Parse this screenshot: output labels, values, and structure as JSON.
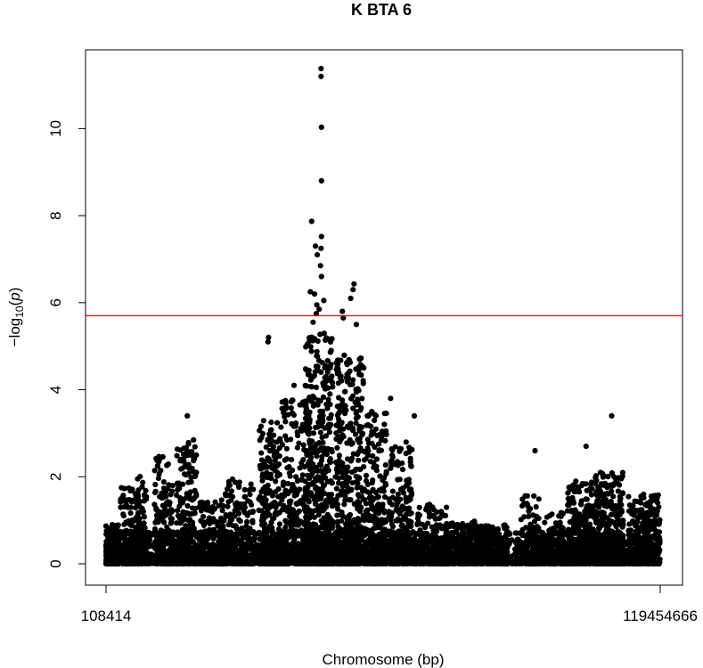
{
  "chart_data": {
    "type": "scatter",
    "title": "K BTA 6",
    "xlabel": "Chromosome (bp)",
    "ylabel_base": "−log",
    "ylabel_sub": "10",
    "ylabel_open": "(",
    "ylabel_var": "p",
    "ylabel_close": ")",
    "xlim": [
      108414,
      119454666
    ],
    "ylim": [
      0,
      11.4
    ],
    "x_ticks": [
      {
        "value": 108414,
        "label": "108414"
      },
      {
        "value": 119454666,
        "label": "119454666"
      }
    ],
    "y_ticks": [
      {
        "value": 0,
        "label": "0"
      },
      {
        "value": 2,
        "label": "2"
      },
      {
        "value": 4,
        "label": "4"
      },
      {
        "value": 6,
        "label": "6"
      },
      {
        "value": 8,
        "label": "8"
      },
      {
        "value": 10,
        "label": "10"
      }
    ],
    "threshold": {
      "value": 5.7,
      "color": "#ff0000"
    },
    "point_color": "#000000",
    "highlighted_points": [
      {
        "x": 46400000,
        "y": 11.38
      },
      {
        "x": 46400000,
        "y": 11.2
      },
      {
        "x": 46500000,
        "y": 10.03
      },
      {
        "x": 46500000,
        "y": 8.8
      },
      {
        "x": 44400000,
        "y": 7.87
      },
      {
        "x": 46500000,
        "y": 7.52
      },
      {
        "x": 45200000,
        "y": 7.3
      },
      {
        "x": 46400000,
        "y": 7.25
      },
      {
        "x": 45600000,
        "y": 7.1
      },
      {
        "x": 46300000,
        "y": 6.85
      },
      {
        "x": 46500000,
        "y": 6.6
      },
      {
        "x": 53500000,
        "y": 6.43
      },
      {
        "x": 53300000,
        "y": 6.3
      },
      {
        "x": 44100000,
        "y": 6.25
      },
      {
        "x": 45000000,
        "y": 6.2
      },
      {
        "x": 52800000,
        "y": 6.1
      },
      {
        "x": 47000000,
        "y": 6.05
      },
      {
        "x": 45500000,
        "y": 5.95
      },
      {
        "x": 46000000,
        "y": 5.85
      },
      {
        "x": 45400000,
        "y": 5.75
      },
      {
        "x": 51000000,
        "y": 5.8
      },
      {
        "x": 51200000,
        "y": 5.65
      },
      {
        "x": 35100000,
        "y": 5.2
      },
      {
        "x": 35000000,
        "y": 5.1
      },
      {
        "x": 44700000,
        "y": 5.55
      },
      {
        "x": 54000000,
        "y": 5.5
      },
      {
        "x": 55600000,
        "y": 4.5
      },
      {
        "x": 54700000,
        "y": 4.7
      },
      {
        "x": 40600000,
        "y": 4.1
      },
      {
        "x": 61400000,
        "y": 3.8
      },
      {
        "x": 66500000,
        "y": 3.4
      },
      {
        "x": 17600000,
        "y": 3.4
      },
      {
        "x": 109000000,
        "y": 3.4
      },
      {
        "x": 92500000,
        "y": 2.6
      },
      {
        "x": 103500000,
        "y": 2.7
      }
    ],
    "clusters": [
      {
        "x_center": 1500000,
        "x_spread": 1400000,
        "y_max": 0.9,
        "count": 240
      },
      {
        "x_center": 5200000,
        "x_spread": 2000000,
        "y_max": 1.8,
        "count": 160
      },
      {
        "x_center": 7800000,
        "x_spread": 1000000,
        "y_max": 2.2,
        "count": 110
      },
      {
        "x_center": 12500000,
        "x_spread": 2000000,
        "y_max": 2.5,
        "count": 200
      },
      {
        "x_center": 17500000,
        "x_spread": 2200000,
        "y_max": 2.9,
        "count": 220
      },
      {
        "x_center": 22500000,
        "x_spread": 2500000,
        "y_max": 1.5,
        "count": 170
      },
      {
        "x_center": 28500000,
        "x_spread": 3500000,
        "y_max": 2.0,
        "count": 220
      },
      {
        "x_center": 35500000,
        "x_spread": 2500000,
        "y_max": 3.3,
        "count": 280
      },
      {
        "x_center": 41000000,
        "x_spread": 3000000,
        "y_max": 3.8,
        "count": 320
      },
      {
        "x_center": 46000000,
        "x_spread": 3000000,
        "y_max": 5.3,
        "count": 560
      },
      {
        "x_center": 52500000,
        "x_spread": 3000000,
        "y_max": 4.8,
        "count": 460
      },
      {
        "x_center": 58000000,
        "x_spread": 2500000,
        "y_max": 3.5,
        "count": 300
      },
      {
        "x_center": 63500000,
        "x_spread": 2500000,
        "y_max": 2.8,
        "count": 240
      },
      {
        "x_center": 70000000,
        "x_spread": 3500000,
        "y_max": 1.4,
        "count": 220
      },
      {
        "x_center": 77000000,
        "x_spread": 3500000,
        "y_max": 1.0,
        "count": 200
      },
      {
        "x_center": 83500000,
        "x_spread": 3500000,
        "y_max": 0.9,
        "count": 200
      },
      {
        "x_center": 91500000,
        "x_spread": 2000000,
        "y_max": 1.6,
        "count": 160
      },
      {
        "x_center": 96500000,
        "x_spread": 2500000,
        "y_max": 1.2,
        "count": 170
      },
      {
        "x_center": 102500000,
        "x_spread": 3000000,
        "y_max": 1.9,
        "count": 340
      },
      {
        "x_center": 108500000,
        "x_spread": 3000000,
        "y_max": 2.1,
        "count": 380
      },
      {
        "x_center": 116000000,
        "x_spread": 3400000,
        "y_max": 1.6,
        "count": 320
      }
    ]
  }
}
